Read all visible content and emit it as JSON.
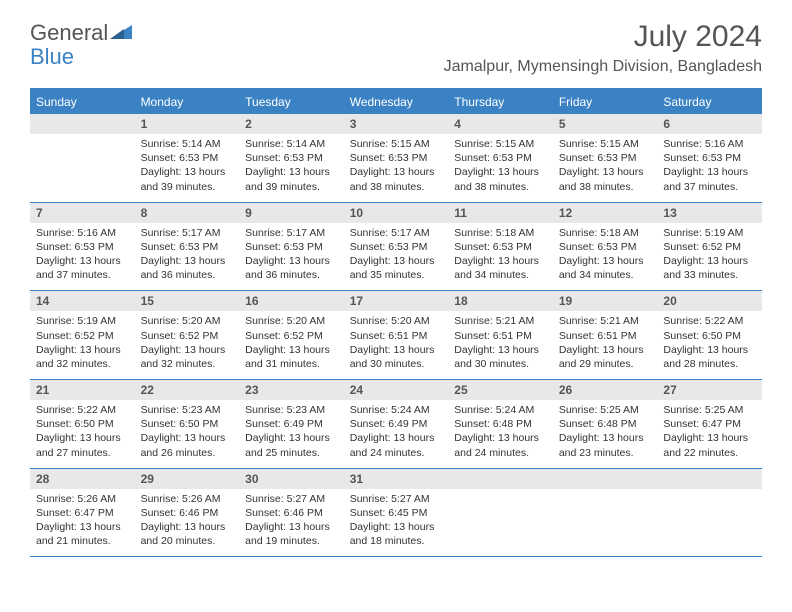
{
  "logo": {
    "text1": "General",
    "text2": "Blue"
  },
  "title": "July 2024",
  "location": "Jamalpur, Mymensingh Division, Bangladesh",
  "colors": {
    "header_bg": "#3b82c4",
    "header_text": "#ffffff",
    "daynum_bg": "#e8e8e8",
    "border": "#3b82c4",
    "text": "#333333",
    "title_text": "#555555"
  },
  "fonts": {
    "title_size": 30,
    "location_size": 16,
    "header_size": 12,
    "daynum_size": 12,
    "info_size": 10.5
  },
  "dayNames": [
    "Sunday",
    "Monday",
    "Tuesday",
    "Wednesday",
    "Thursday",
    "Friday",
    "Saturday"
  ],
  "weeks": [
    [
      {
        "num": "",
        "sunrise": "",
        "sunset": "",
        "daylight": ""
      },
      {
        "num": "1",
        "sunrise": "Sunrise: 5:14 AM",
        "sunset": "Sunset: 6:53 PM",
        "daylight": "Daylight: 13 hours and 39 minutes."
      },
      {
        "num": "2",
        "sunrise": "Sunrise: 5:14 AM",
        "sunset": "Sunset: 6:53 PM",
        "daylight": "Daylight: 13 hours and 39 minutes."
      },
      {
        "num": "3",
        "sunrise": "Sunrise: 5:15 AM",
        "sunset": "Sunset: 6:53 PM",
        "daylight": "Daylight: 13 hours and 38 minutes."
      },
      {
        "num": "4",
        "sunrise": "Sunrise: 5:15 AM",
        "sunset": "Sunset: 6:53 PM",
        "daylight": "Daylight: 13 hours and 38 minutes."
      },
      {
        "num": "5",
        "sunrise": "Sunrise: 5:15 AM",
        "sunset": "Sunset: 6:53 PM",
        "daylight": "Daylight: 13 hours and 38 minutes."
      },
      {
        "num": "6",
        "sunrise": "Sunrise: 5:16 AM",
        "sunset": "Sunset: 6:53 PM",
        "daylight": "Daylight: 13 hours and 37 minutes."
      }
    ],
    [
      {
        "num": "7",
        "sunrise": "Sunrise: 5:16 AM",
        "sunset": "Sunset: 6:53 PM",
        "daylight": "Daylight: 13 hours and 37 minutes."
      },
      {
        "num": "8",
        "sunrise": "Sunrise: 5:17 AM",
        "sunset": "Sunset: 6:53 PM",
        "daylight": "Daylight: 13 hours and 36 minutes."
      },
      {
        "num": "9",
        "sunrise": "Sunrise: 5:17 AM",
        "sunset": "Sunset: 6:53 PM",
        "daylight": "Daylight: 13 hours and 36 minutes."
      },
      {
        "num": "10",
        "sunrise": "Sunrise: 5:17 AM",
        "sunset": "Sunset: 6:53 PM",
        "daylight": "Daylight: 13 hours and 35 minutes."
      },
      {
        "num": "11",
        "sunrise": "Sunrise: 5:18 AM",
        "sunset": "Sunset: 6:53 PM",
        "daylight": "Daylight: 13 hours and 34 minutes."
      },
      {
        "num": "12",
        "sunrise": "Sunrise: 5:18 AM",
        "sunset": "Sunset: 6:53 PM",
        "daylight": "Daylight: 13 hours and 34 minutes."
      },
      {
        "num": "13",
        "sunrise": "Sunrise: 5:19 AM",
        "sunset": "Sunset: 6:52 PM",
        "daylight": "Daylight: 13 hours and 33 minutes."
      }
    ],
    [
      {
        "num": "14",
        "sunrise": "Sunrise: 5:19 AM",
        "sunset": "Sunset: 6:52 PM",
        "daylight": "Daylight: 13 hours and 32 minutes."
      },
      {
        "num": "15",
        "sunrise": "Sunrise: 5:20 AM",
        "sunset": "Sunset: 6:52 PM",
        "daylight": "Daylight: 13 hours and 32 minutes."
      },
      {
        "num": "16",
        "sunrise": "Sunrise: 5:20 AM",
        "sunset": "Sunset: 6:52 PM",
        "daylight": "Daylight: 13 hours and 31 minutes."
      },
      {
        "num": "17",
        "sunrise": "Sunrise: 5:20 AM",
        "sunset": "Sunset: 6:51 PM",
        "daylight": "Daylight: 13 hours and 30 minutes."
      },
      {
        "num": "18",
        "sunrise": "Sunrise: 5:21 AM",
        "sunset": "Sunset: 6:51 PM",
        "daylight": "Daylight: 13 hours and 30 minutes."
      },
      {
        "num": "19",
        "sunrise": "Sunrise: 5:21 AM",
        "sunset": "Sunset: 6:51 PM",
        "daylight": "Daylight: 13 hours and 29 minutes."
      },
      {
        "num": "20",
        "sunrise": "Sunrise: 5:22 AM",
        "sunset": "Sunset: 6:50 PM",
        "daylight": "Daylight: 13 hours and 28 minutes."
      }
    ],
    [
      {
        "num": "21",
        "sunrise": "Sunrise: 5:22 AM",
        "sunset": "Sunset: 6:50 PM",
        "daylight": "Daylight: 13 hours and 27 minutes."
      },
      {
        "num": "22",
        "sunrise": "Sunrise: 5:23 AM",
        "sunset": "Sunset: 6:50 PM",
        "daylight": "Daylight: 13 hours and 26 minutes."
      },
      {
        "num": "23",
        "sunrise": "Sunrise: 5:23 AM",
        "sunset": "Sunset: 6:49 PM",
        "daylight": "Daylight: 13 hours and 25 minutes."
      },
      {
        "num": "24",
        "sunrise": "Sunrise: 5:24 AM",
        "sunset": "Sunset: 6:49 PM",
        "daylight": "Daylight: 13 hours and 24 minutes."
      },
      {
        "num": "25",
        "sunrise": "Sunrise: 5:24 AM",
        "sunset": "Sunset: 6:48 PM",
        "daylight": "Daylight: 13 hours and 24 minutes."
      },
      {
        "num": "26",
        "sunrise": "Sunrise: 5:25 AM",
        "sunset": "Sunset: 6:48 PM",
        "daylight": "Daylight: 13 hours and 23 minutes."
      },
      {
        "num": "27",
        "sunrise": "Sunrise: 5:25 AM",
        "sunset": "Sunset: 6:47 PM",
        "daylight": "Daylight: 13 hours and 22 minutes."
      }
    ],
    [
      {
        "num": "28",
        "sunrise": "Sunrise: 5:26 AM",
        "sunset": "Sunset: 6:47 PM",
        "daylight": "Daylight: 13 hours and 21 minutes."
      },
      {
        "num": "29",
        "sunrise": "Sunrise: 5:26 AM",
        "sunset": "Sunset: 6:46 PM",
        "daylight": "Daylight: 13 hours and 20 minutes."
      },
      {
        "num": "30",
        "sunrise": "Sunrise: 5:27 AM",
        "sunset": "Sunset: 6:46 PM",
        "daylight": "Daylight: 13 hours and 19 minutes."
      },
      {
        "num": "31",
        "sunrise": "Sunrise: 5:27 AM",
        "sunset": "Sunset: 6:45 PM",
        "daylight": "Daylight: 13 hours and 18 minutes."
      },
      {
        "num": "",
        "sunrise": "",
        "sunset": "",
        "daylight": ""
      },
      {
        "num": "",
        "sunrise": "",
        "sunset": "",
        "daylight": ""
      },
      {
        "num": "",
        "sunrise": "",
        "sunset": "",
        "daylight": ""
      }
    ]
  ]
}
